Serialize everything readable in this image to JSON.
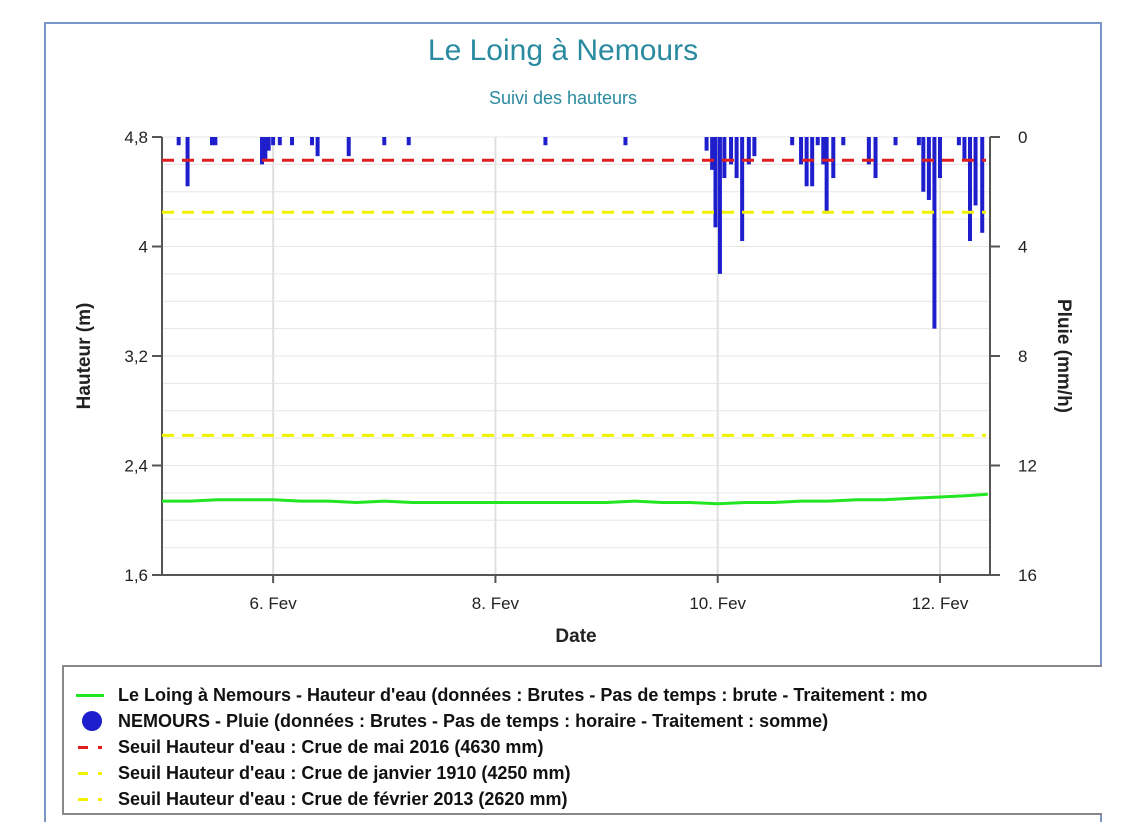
{
  "colors": {
    "hauteur": "#22e622",
    "pluie": "#1e1ecc",
    "seuil_2016": "#e01e1e",
    "seuil_1910": "#f0f000",
    "seuil_2013": "#f0f000",
    "title": "#2a8aa0"
  },
  "chart_data": {
    "type": "line",
    "title": "Le Loing à Nemours",
    "subtitle": "Suivi des hauteurs",
    "xlabel": "Date",
    "ylabel_left": "Hauteur (m)",
    "ylabel_right": "Pluie (mm/h)",
    "x_range_days": [
      5.0,
      12.45
    ],
    "x_ticks": [
      {
        "x": 6.0,
        "label": "6. Fev"
      },
      {
        "x": 8.0,
        "label": "8. Fev"
      },
      {
        "x": 10.0,
        "label": "10. Fev"
      },
      {
        "x": 12.0,
        "label": "12. Fev"
      }
    ],
    "ylim_left": [
      1.6,
      4.8
    ],
    "yticks_left": [
      "1,6",
      "2,4",
      "3,2",
      "4",
      "4,8"
    ],
    "yticks_left_values": [
      1.6,
      2.4,
      3.2,
      4.0,
      4.8
    ],
    "ylim_right": [
      0,
      16
    ],
    "yticks_right": [
      "0",
      "4",
      "8",
      "12",
      "16"
    ],
    "yticks_right_values": [
      0,
      4,
      8,
      12,
      16
    ],
    "right_axis_inverted": true,
    "grid": true,
    "series": [
      {
        "name": "Le Loing à Nemours - Hauteur d'eau (données : Brutes - Pas de temps : brute - Traitement : mo",
        "kind": "line",
        "points": [
          [
            5.0,
            2.14
          ],
          [
            5.25,
            2.14
          ],
          [
            5.5,
            2.15
          ],
          [
            5.75,
            2.15
          ],
          [
            6.0,
            2.15
          ],
          [
            6.25,
            2.14
          ],
          [
            6.5,
            2.14
          ],
          [
            6.75,
            2.13
          ],
          [
            7.0,
            2.14
          ],
          [
            7.25,
            2.13
          ],
          [
            7.5,
            2.13
          ],
          [
            7.75,
            2.13
          ],
          [
            8.0,
            2.13
          ],
          [
            8.25,
            2.13
          ],
          [
            8.5,
            2.13
          ],
          [
            8.75,
            2.13
          ],
          [
            9.0,
            2.13
          ],
          [
            9.25,
            2.14
          ],
          [
            9.5,
            2.13
          ],
          [
            9.75,
            2.13
          ],
          [
            10.0,
            2.12
          ],
          [
            10.25,
            2.13
          ],
          [
            10.5,
            2.13
          ],
          [
            10.75,
            2.14
          ],
          [
            11.0,
            2.14
          ],
          [
            11.25,
            2.15
          ],
          [
            11.5,
            2.15
          ],
          [
            11.75,
            2.16
          ],
          [
            12.0,
            2.17
          ],
          [
            12.25,
            2.18
          ],
          [
            12.43,
            2.19
          ]
        ]
      },
      {
        "name": "NEMOURS - Pluie (données : Brutes - Pas de temps : horaire - Traitement : somme)",
        "kind": "bar",
        "bars": [
          [
            5.15,
            0.3
          ],
          [
            5.23,
            1.8
          ],
          [
            5.45,
            0.3
          ],
          [
            5.48,
            0.3
          ],
          [
            5.9,
            1.0
          ],
          [
            5.93,
            0.8
          ],
          [
            5.96,
            0.5
          ],
          [
            6.0,
            0.3
          ],
          [
            6.06,
            0.3
          ],
          [
            6.17,
            0.3
          ],
          [
            6.35,
            0.3
          ],
          [
            6.4,
            0.7
          ],
          [
            6.68,
            0.7
          ],
          [
            7.0,
            0.3
          ],
          [
            7.22,
            0.3
          ],
          [
            8.45,
            0.3
          ],
          [
            9.17,
            0.3
          ],
          [
            9.9,
            0.5
          ],
          [
            9.95,
            1.2
          ],
          [
            9.98,
            3.3
          ],
          [
            10.02,
            5.0
          ],
          [
            10.06,
            1.5
          ],
          [
            10.12,
            1.0
          ],
          [
            10.17,
            1.5
          ],
          [
            10.22,
            3.8
          ],
          [
            10.28,
            1.0
          ],
          [
            10.33,
            0.7
          ],
          [
            10.67,
            0.3
          ],
          [
            10.75,
            1.0
          ],
          [
            10.8,
            1.8
          ],
          [
            10.85,
            1.8
          ],
          [
            10.9,
            0.3
          ],
          [
            10.95,
            1.0
          ],
          [
            10.98,
            2.8
          ],
          [
            11.04,
            1.5
          ],
          [
            11.13,
            0.3
          ],
          [
            11.36,
            1.0
          ],
          [
            11.42,
            1.5
          ],
          [
            11.6,
            0.3
          ],
          [
            11.81,
            0.3
          ],
          [
            11.85,
            2.0
          ],
          [
            11.9,
            2.3
          ],
          [
            11.95,
            7.0
          ],
          [
            12.0,
            1.5
          ],
          [
            12.17,
            0.3
          ],
          [
            12.22,
            0.8
          ],
          [
            12.27,
            3.8
          ],
          [
            12.32,
            2.5
          ],
          [
            12.38,
            3.5
          ]
        ]
      },
      {
        "name": "Seuil Hauteur d'eau : Crue de mai 2016 (4630 mm)",
        "kind": "threshold",
        "value": 4.63
      },
      {
        "name": "Seuil Hauteur d'eau : Crue de janvier 1910 (4250 mm)",
        "kind": "threshold",
        "value": 4.25
      },
      {
        "name": "Seuil Hauteur d'eau : Crue de février 2013 (2620 mm)",
        "kind": "threshold",
        "value": 2.62
      }
    ],
    "legend": {
      "placement": "bottom",
      "items": [
        {
          "label": "Le Loing à Nemours - Hauteur d'eau (données : Brutes - Pas de temps : brute - Traitement : mo",
          "swatch": "line",
          "color": "#22e622"
        },
        {
          "label": "NEMOURS - Pluie (données : Brutes - Pas de temps : horaire - Traitement : somme)",
          "swatch": "dot",
          "color": "#1e1ecc"
        },
        {
          "label": "Seuil Hauteur d'eau : Crue de mai 2016 (4630 mm)",
          "swatch": "dash",
          "color": "#e01e1e"
        },
        {
          "label": "Seuil Hauteur d'eau : Crue de janvier 1910 (4250 mm)",
          "swatch": "dash",
          "color": "#f0f000"
        },
        {
          "label": "Seuil Hauteur d'eau : Crue de février 2013 (2620 mm)",
          "swatch": "dash",
          "color": "#f0f000"
        }
      ]
    }
  }
}
